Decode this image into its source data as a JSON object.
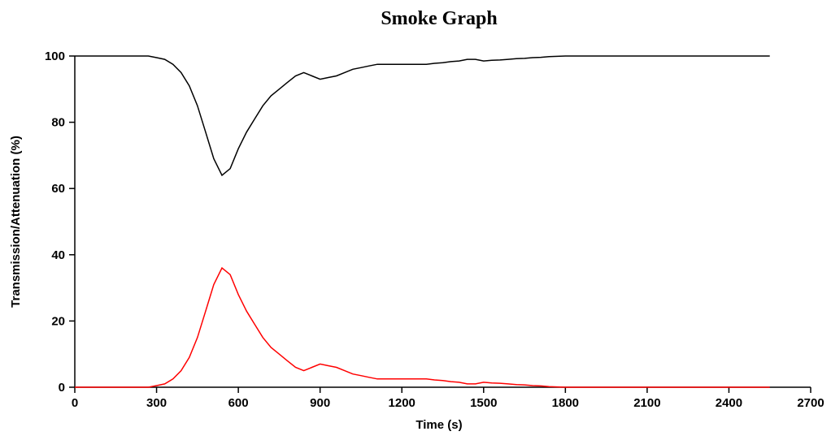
{
  "chart_data": {
    "type": "line",
    "title": "Smoke Graph",
    "x_label": "Time (s)",
    "y_label": "Transmission/Attenuation (%)",
    "x": [
      0,
      30,
      60,
      90,
      120,
      150,
      180,
      210,
      240,
      270,
      300,
      330,
      360,
      390,
      420,
      450,
      480,
      510,
      540,
      570,
      600,
      630,
      660,
      690,
      720,
      750,
      780,
      810,
      840,
      870,
      900,
      930,
      960,
      990,
      1020,
      1050,
      1080,
      1110,
      1140,
      1170,
      1200,
      1230,
      1260,
      1290,
      1320,
      1350,
      1380,
      1410,
      1440,
      1470,
      1500,
      1530,
      1560,
      1590,
      1620,
      1650,
      1680,
      1710,
      1740,
      1770,
      1800,
      1830,
      1860,
      1890,
      1920,
      1950,
      1980,
      2010,
      2040,
      2070,
      2100,
      2130,
      2160,
      2190,
      2220,
      2250,
      2280,
      2310,
      2340,
      2370,
      2400,
      2430,
      2460,
      2490,
      2520,
      2550
    ],
    "series": [
      {
        "color": "#000000",
        "values": [
          100,
          100,
          100,
          100,
          100,
          100,
          100,
          100,
          100,
          100,
          99.5,
          99,
          97.5,
          95,
          91,
          85,
          77,
          69,
          64,
          66,
          72,
          77,
          81,
          85,
          88,
          90,
          92,
          94,
          95,
          94,
          93,
          93.5,
          94,
          95,
          96,
          96.5,
          97,
          97.5,
          97.5,
          97.5,
          97.5,
          97.5,
          97.5,
          97.5,
          97.8,
          98,
          98.3,
          98.5,
          99,
          99,
          98.5,
          98.7,
          98.8,
          99,
          99.2,
          99.3,
          99.5,
          99.6,
          99.8,
          99.9,
          100,
          100,
          100,
          100,
          100,
          100,
          100,
          100,
          100,
          100,
          100,
          100,
          100,
          100,
          100,
          100,
          100,
          100,
          100,
          100,
          100,
          100,
          100,
          100,
          100,
          100
        ]
      },
      {
        "color": "#ff0000",
        "values": [
          0,
          0,
          0,
          0,
          0,
          0,
          0,
          0,
          0,
          0,
          0.5,
          1,
          2.5,
          5,
          9,
          15,
          23,
          31,
          36,
          34,
          28,
          23,
          19,
          15,
          12,
          10,
          8,
          6,
          5,
          6,
          7,
          6.5,
          6,
          5,
          4,
          3.5,
          3,
          2.5,
          2.5,
          2.5,
          2.5,
          2.5,
          2.5,
          2.5,
          2.2,
          2,
          1.7,
          1.5,
          1,
          1,
          1.5,
          1.3,
          1.2,
          1,
          0.8,
          0.7,
          0.5,
          0.4,
          0.2,
          0.1,
          0,
          0,
          0,
          0,
          0,
          0,
          0,
          0,
          0,
          0,
          0,
          0,
          0,
          0,
          0,
          0,
          0,
          0,
          0,
          0,
          0,
          0,
          0,
          0,
          0,
          0
        ]
      }
    ],
    "xlim": [
      0,
      2700
    ],
    "xticks": [
      0,
      300,
      600,
      900,
      1200,
      1500,
      1800,
      2100,
      2400,
      2700
    ],
    "ylim": [
      0,
      100
    ],
    "yticks": [
      0,
      20,
      40,
      60,
      80,
      100
    ]
  }
}
